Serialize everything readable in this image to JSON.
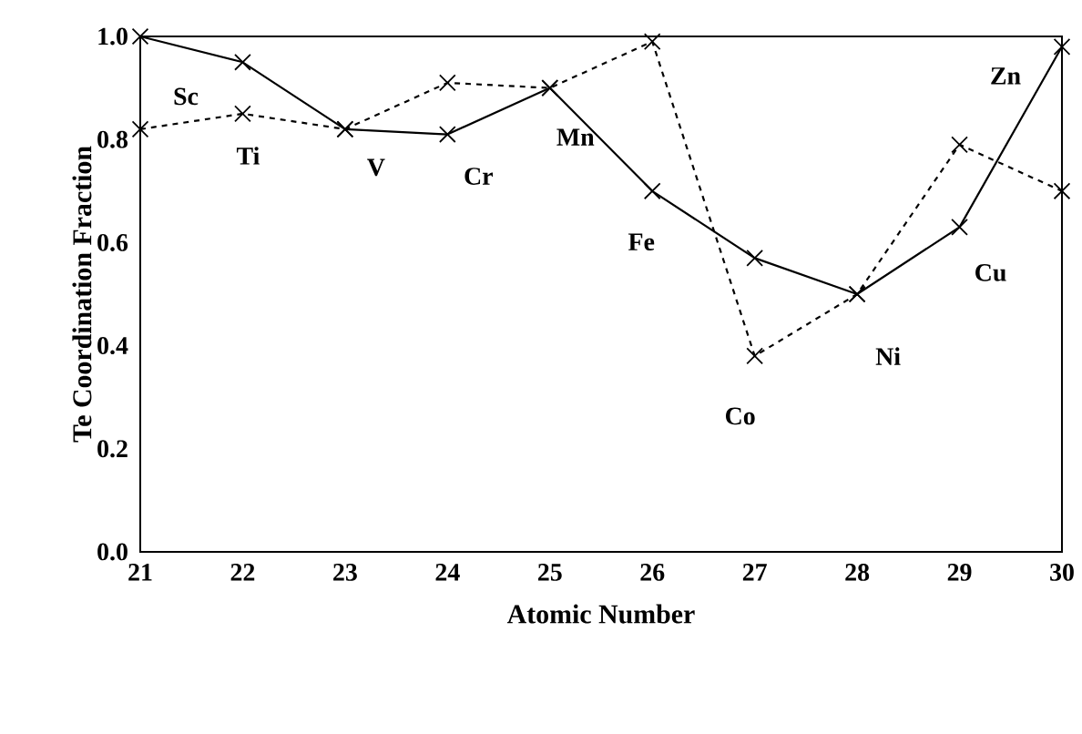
{
  "chart_data": {
    "type": "line",
    "xlabel": "Atomic Number",
    "ylabel": "Te Coordination Fraction",
    "x": [
      21,
      22,
      23,
      24,
      25,
      26,
      27,
      28,
      29,
      30
    ],
    "series": [
      {
        "color": "#000000",
        "line_style": "solid",
        "values": [
          1.0,
          0.95,
          0.82,
          0.81,
          0.9,
          0.7,
          0.57,
          0.5,
          0.63,
          0.98
        ]
      },
      {
        "color": "#000000",
        "line_style": "dashed",
        "values": [
          0.82,
          0.85,
          0.82,
          0.91,
          0.9,
          0.99,
          0.38,
          0.5,
          0.79,
          0.7
        ]
      }
    ],
    "marker": "cross",
    "grid": false,
    "xlim": [
      21,
      30
    ],
    "ylim": [
      0,
      1
    ],
    "xticks": [
      21,
      22,
      23,
      24,
      25,
      26,
      27,
      28,
      29,
      30
    ],
    "yticks": [
      {
        "value": 0,
        "label": "0.0"
      },
      {
        "value": 0.2,
        "label": "0.2"
      },
      {
        "value": 0.4,
        "label": "0.4"
      },
      {
        "value": 0.6,
        "label": "0.6"
      },
      {
        "value": 0.8,
        "label": "0.8"
      },
      {
        "value": 1,
        "label": "1.0"
      }
    ],
    "annotations": [
      {
        "text": "Sc",
        "x": 21,
        "y": 0.82
      },
      {
        "text": "Ti",
        "x": 22,
        "y": 0.85
      },
      {
        "text": "V",
        "x": 23,
        "y": 0.82
      },
      {
        "text": "Cr",
        "x": 24,
        "y": 0.81
      },
      {
        "text": "Mn",
        "x": 25,
        "y": 0.9
      },
      {
        "text": "Fe",
        "x": 26,
        "y": 0.7
      },
      {
        "text": "Co",
        "x": 27,
        "y": 0.38
      },
      {
        "text": "Ni",
        "x": 28,
        "y": 0.5
      },
      {
        "text": "Cu",
        "x": 29,
        "y": 0.63
      },
      {
        "text": "Zn",
        "x": 30,
        "y": 0.98
      }
    ]
  }
}
